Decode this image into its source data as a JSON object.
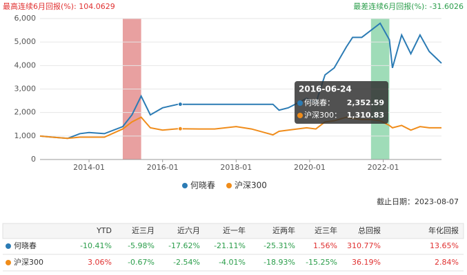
{
  "chart_data": {
    "type": "line",
    "best_note": "最高连续6月回报(%): 104.0629",
    "worst_note": "最差连续6月回报(%): -31.6026",
    "x": [
      "2012-09",
      "2013-01",
      "2013-06",
      "2013-10",
      "2014-01",
      "2014-06",
      "2014-12",
      "2015-03",
      "2015-06",
      "2015-09",
      "2016-01",
      "2016-06",
      "2017-01",
      "2017-06",
      "2018-01",
      "2018-06",
      "2019-01",
      "2019-03",
      "2019-06",
      "2019-12",
      "2020-03",
      "2020-06",
      "2020-09",
      "2021-01",
      "2021-03",
      "2021-06",
      "2021-09",
      "2021-12",
      "2022-03",
      "2022-04",
      "2022-07",
      "2022-10",
      "2023-01",
      "2023-04",
      "2023-08"
    ],
    "series": [
      {
        "name": "何晓春",
        "color": "#2b7bb4",
        "values": [
          1000,
          950,
          900,
          1100,
          1150,
          1100,
          1400,
          1900,
          2700,
          1900,
          2200,
          2350,
          2350,
          2350,
          2350,
          2350,
          2350,
          2100,
          2200,
          2600,
          2400,
          3600,
          3900,
          4800,
          5200,
          5200,
          5500,
          5800,
          5100,
          3900,
          5300,
          4500,
          5300,
          4600,
          4100
        ]
      },
      {
        "name": "沪深300",
        "color": "#f08c1a",
        "values": [
          1000,
          950,
          900,
          950,
          950,
          950,
          1300,
          1600,
          1800,
          1350,
          1250,
          1310,
          1300,
          1300,
          1400,
          1300,
          1050,
          1200,
          1250,
          1350,
          1300,
          1600,
          1650,
          1800,
          1750,
          1700,
          1700,
          1650,
          1450,
          1350,
          1450,
          1250,
          1400,
          1350,
          1350
        ]
      }
    ],
    "xlim": [
      "2012-09",
      "2023-08"
    ],
    "xticks": [
      "2014-01",
      "2016-01",
      "2018-01",
      "2020-01",
      "2022-01"
    ],
    "ylim": [
      0,
      6000
    ],
    "yticks": [
      0,
      {
        "value": 1000,
        "label": "1,000"
      },
      {
        "value": 2000,
        "label": "2,000"
      },
      {
        "value": 3000,
        "label": "3,000"
      },
      {
        "value": 4000,
        "label": "4,000"
      },
      {
        "value": 5000,
        "label": "5,000"
      },
      {
        "value": 6000,
        "label": "6,000"
      }
    ],
    "grid": true,
    "bands": [
      {
        "start": "2014-12",
        "end": "2015-06",
        "color": "#e08080"
      },
      {
        "start": "2021-09",
        "end": "2022-03",
        "color": "#7fd0a0"
      }
    ],
    "tooltip": {
      "date": "2016-06-24",
      "rows": [
        {
          "label": "何晓春：",
          "value": 2352.59,
          "value_label": "2,352.59"
        },
        {
          "label": "沪深300：",
          "value": 1310.83,
          "value_label": "1,310.83"
        }
      ]
    },
    "cutoff": "截止日期：2023-08-07"
  },
  "table": {
    "header": [
      "YTD",
      "近三月",
      "近六月",
      "近一年",
      "近两年",
      "近三年",
      "总回报",
      "年化回报"
    ],
    "rows": [
      {
        "name": "何晓春",
        "color": "#2b7bb4",
        "cells": [
          "-10.41%",
          "-5.98%",
          "-17.62%",
          "-21.11%",
          "-25.31%",
          "1.56%",
          "310.77%",
          "13.65%"
        ]
      },
      {
        "name": "沪深300",
        "color": "#f08c1a",
        "cells": [
          "3.06%",
          "-0.67%",
          "-2.54%",
          "-4.01%",
          "-18.93%",
          "-15.25%",
          "36.19%",
          "2.84%"
        ]
      }
    ]
  }
}
